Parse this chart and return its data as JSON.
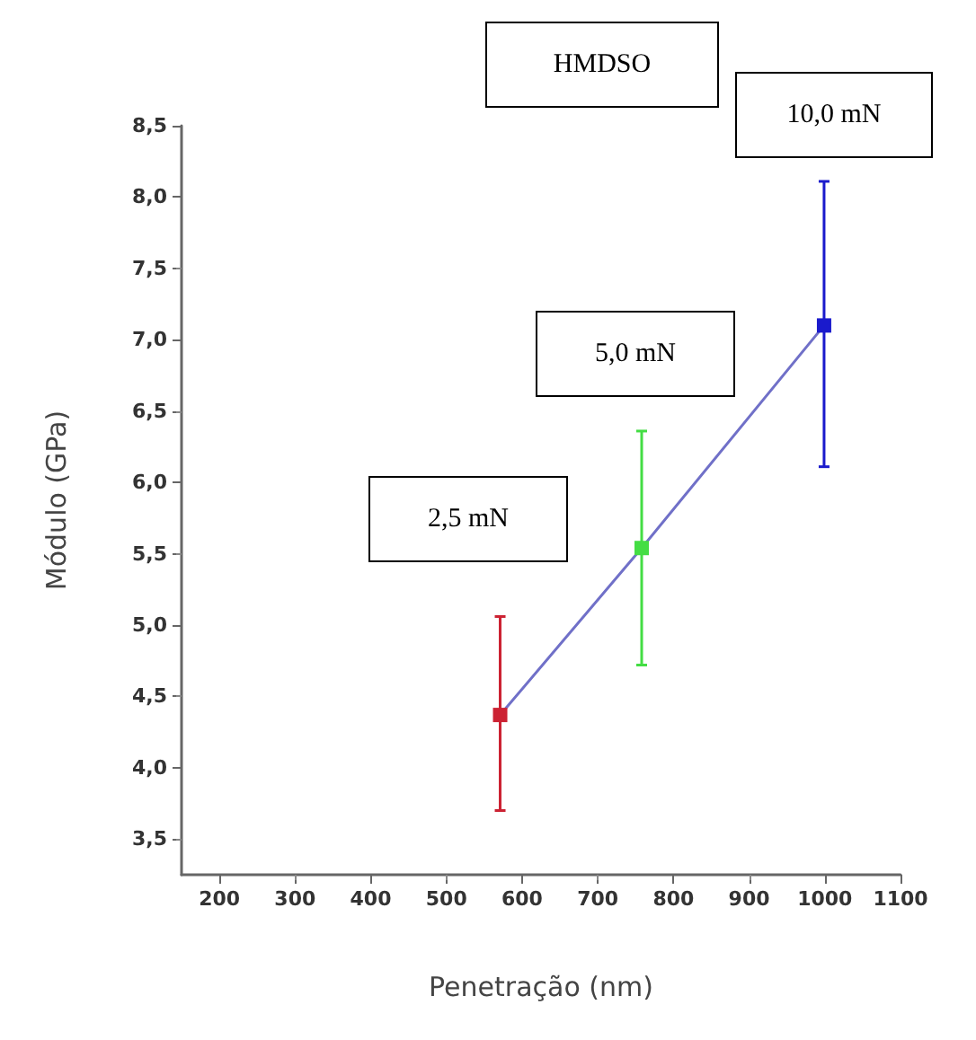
{
  "chart_data": {
    "type": "line",
    "xlabel": "Penetração (nm)",
    "ylabel": "Módulo (GPa)",
    "x": [
      571,
      758,
      999
    ],
    "series": [
      {
        "color": "#7070c8",
        "colors": [
          "#cc2233",
          "#44dd44",
          "#1a1acc"
        ],
        "values": [
          4.37,
          5.54,
          7.1
        ],
        "errors": [
          [
            3.7,
            5.06
          ],
          [
            4.72,
            6.36
          ],
          [
            6.11,
            8.11
          ]
        ]
      }
    ],
    "xlim": [
      150,
      1100
    ],
    "xticks": [
      200,
      300,
      400,
      500,
      600,
      700,
      800,
      900,
      1000,
      1100
    ],
    "ylim": [
      3.25,
      8.5
    ],
    "yticks": [
      {
        "value": 3.5,
        "label": "3,5"
      },
      {
        "value": 4,
        "label": "4,0"
      },
      {
        "value": 4.5,
        "label": "4,5"
      },
      {
        "value": 5,
        "label": "5,0"
      },
      {
        "value": 5.5,
        "label": "5,5"
      },
      {
        "value": 6,
        "label": "6,0"
      },
      {
        "value": 6.5,
        "label": "6,5"
      },
      {
        "value": 7,
        "label": "7,0"
      },
      {
        "value": 7.5,
        "label": "7,5"
      },
      {
        "value": 8,
        "label": "8,0"
      },
      {
        "value": 8.5,
        "label": "8,5"
      }
    ],
    "annotations": [
      "HMDSO",
      "2,5 mN",
      "5,0 mN",
      "10,0 mN"
    ],
    "marker": "square",
    "line_style": "solid",
    "grid": false
  }
}
